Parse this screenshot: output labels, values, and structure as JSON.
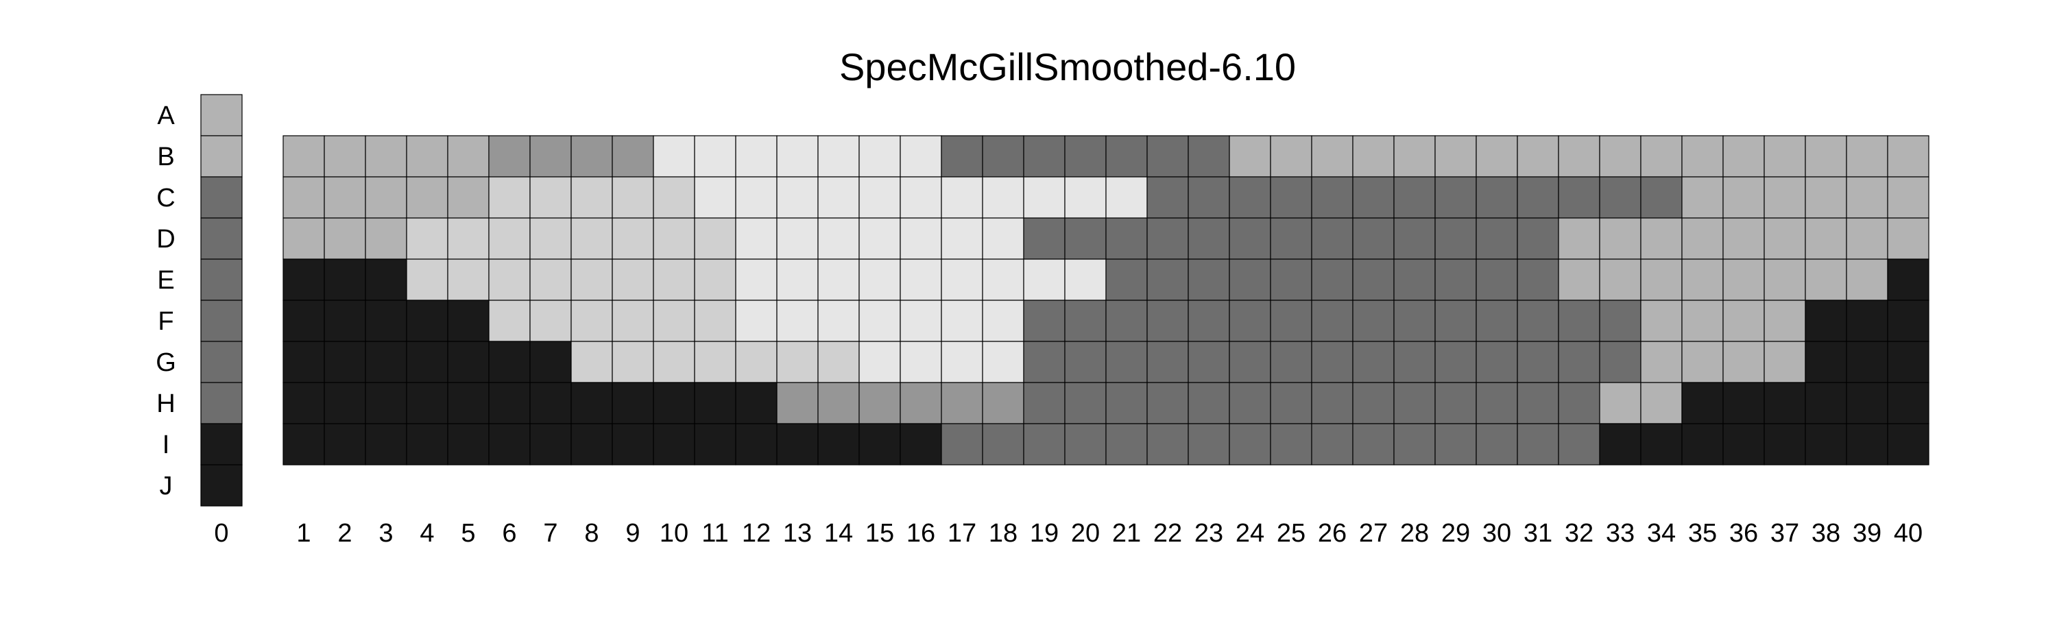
{
  "chart_data": {
    "type": "heatmap",
    "title": "SpecMcGillSmoothed-6.10",
    "colors": {
      "1": "#b3b3b3",
      "2": "#6e6e6e",
      "3": "#1a1a1a",
      "4": "#969696",
      "5": "#e6e6e6",
      "6": "#d0d0d0"
    },
    "reference_column": {
      "label": "0",
      "rows": [
        "A",
        "B",
        "C",
        "D",
        "E",
        "F",
        "G",
        "H",
        "I",
        "J"
      ],
      "values": [
        1,
        1,
        2,
        2,
        2,
        2,
        2,
        2,
        3,
        3
      ]
    },
    "grid": {
      "rows": [
        "B",
        "C",
        "D",
        "E",
        "F",
        "G",
        "H",
        "I"
      ],
      "columns": [
        "1",
        "2",
        "3",
        "4",
        "5",
        "6",
        "7",
        "8",
        "9",
        "10",
        "11",
        "12",
        "13",
        "14",
        "15",
        "16",
        "17",
        "18",
        "19",
        "20",
        "21",
        "22",
        "23",
        "24",
        "25",
        "26",
        "27",
        "28",
        "29",
        "30",
        "31",
        "32",
        "33",
        "34",
        "35",
        "36",
        "37",
        "38",
        "39",
        "40"
      ],
      "values": [
        [
          1,
          1,
          1,
          1,
          1,
          4,
          4,
          4,
          4,
          5,
          5,
          5,
          5,
          5,
          5,
          5,
          2,
          2,
          2,
          2,
          2,
          2,
          2,
          1,
          1,
          1,
          1,
          1,
          1,
          1,
          1,
          1,
          1,
          1,
          1,
          1,
          1,
          1,
          1,
          1
        ],
        [
          1,
          1,
          1,
          1,
          1,
          6,
          6,
          6,
          6,
          6,
          5,
          5,
          5,
          5,
          5,
          5,
          5,
          5,
          5,
          5,
          5,
          2,
          2,
          2,
          2,
          2,
          2,
          2,
          2,
          2,
          2,
          2,
          2,
          2,
          1,
          1,
          1,
          1,
          1,
          1
        ],
        [
          1,
          1,
          1,
          6,
          6,
          6,
          6,
          6,
          6,
          6,
          6,
          5,
          5,
          5,
          5,
          5,
          5,
          5,
          2,
          2,
          2,
          2,
          2,
          2,
          2,
          2,
          2,
          2,
          2,
          2,
          2,
          1,
          1,
          1,
          1,
          1,
          1,
          1,
          1,
          1
        ],
        [
          3,
          3,
          3,
          6,
          6,
          6,
          6,
          6,
          6,
          6,
          6,
          5,
          5,
          5,
          5,
          5,
          5,
          5,
          5,
          5,
          2,
          2,
          2,
          2,
          2,
          2,
          2,
          2,
          2,
          2,
          2,
          1,
          1,
          1,
          1,
          1,
          1,
          1,
          1,
          3
        ],
        [
          3,
          3,
          3,
          3,
          3,
          6,
          6,
          6,
          6,
          6,
          6,
          5,
          5,
          5,
          5,
          5,
          5,
          5,
          2,
          2,
          2,
          2,
          2,
          2,
          2,
          2,
          2,
          2,
          2,
          2,
          2,
          2,
          2,
          1,
          1,
          1,
          1,
          3,
          3,
          3
        ],
        [
          3,
          3,
          3,
          3,
          3,
          3,
          3,
          6,
          6,
          6,
          6,
          6,
          6,
          6,
          5,
          5,
          5,
          5,
          2,
          2,
          2,
          2,
          2,
          2,
          2,
          2,
          2,
          2,
          2,
          2,
          2,
          2,
          2,
          1,
          1,
          1,
          1,
          3,
          3,
          3
        ],
        [
          3,
          3,
          3,
          3,
          3,
          3,
          3,
          3,
          3,
          3,
          3,
          3,
          4,
          4,
          4,
          4,
          4,
          4,
          2,
          2,
          2,
          2,
          2,
          2,
          2,
          2,
          2,
          2,
          2,
          2,
          2,
          2,
          1,
          1,
          3,
          3,
          3,
          3,
          3,
          3
        ],
        [
          3,
          3,
          3,
          3,
          3,
          3,
          3,
          3,
          3,
          3,
          3,
          3,
          3,
          3,
          3,
          3,
          2,
          2,
          2,
          2,
          2,
          2,
          2,
          2,
          2,
          2,
          2,
          2,
          2,
          2,
          2,
          2,
          3,
          3,
          3,
          3,
          3,
          3,
          3,
          3
        ]
      ]
    }
  }
}
